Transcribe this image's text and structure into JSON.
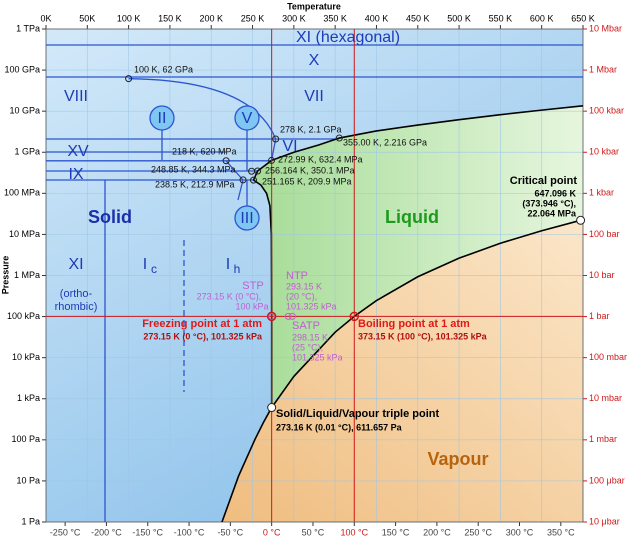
{
  "chart_data": {
    "type": "phase-diagram",
    "xlabel": "Temperature",
    "ylabel": "Pressure",
    "xlim": [
      0,
      650
    ],
    "xticks": [
      {
        "value": 0,
        "label": "0K"
      },
      {
        "value": 50,
        "label": "50K"
      },
      {
        "value": 100,
        "label": "100 K"
      },
      {
        "value": 150,
        "label": "150 K"
      },
      {
        "value": 200,
        "label": "200 K"
      },
      {
        "value": 250,
        "label": "250 K"
      },
      {
        "value": 300,
        "label": "300 K"
      },
      {
        "value": 350,
        "label": "350 K"
      },
      {
        "value": 400,
        "label": "400 K"
      },
      {
        "value": 450,
        "label": "450 K"
      },
      {
        "value": 500,
        "label": "500 K"
      },
      {
        "value": 550,
        "label": "550 K"
      },
      {
        "value": 600,
        "label": "600 K"
      },
      {
        "value": 650,
        "label": "650 K"
      }
    ],
    "x2lim": [
      -273.15,
      376.85
    ],
    "x2ticks": [
      {
        "value": -250,
        "label": "-250 °C"
      },
      {
        "value": -200,
        "label": "-200 °C"
      },
      {
        "value": -150,
        "label": "-150 °C"
      },
      {
        "value": -100,
        "label": "-100 °C"
      },
      {
        "value": -50,
        "label": "-50 °C"
      },
      {
        "value": 0,
        "label": "0 °C"
      },
      {
        "value": 50,
        "label": "50 °C"
      },
      {
        "value": 100,
        "label": "100 °C"
      },
      {
        "value": 150,
        "label": "150 °C"
      },
      {
        "value": 200,
        "label": "200 °C"
      },
      {
        "value": 250,
        "label": "250 °C"
      },
      {
        "value": 300,
        "label": "300 °C"
      },
      {
        "value": 350,
        "label": "350 °C"
      }
    ],
    "ylim": [
      1,
      1000000000000
    ],
    "yscale": "log",
    "yticks": [
      {
        "value": 1,
        "label": "1 Pa"
      },
      {
        "value": 10,
        "label": "10 Pa"
      },
      {
        "value": 100,
        "label": "100 Pa"
      },
      {
        "value": 1000,
        "label": "1 kPa"
      },
      {
        "value": 10000,
        "label": "10 kPa"
      },
      {
        "value": 100000,
        "label": "100 kPa"
      },
      {
        "value": 1000000,
        "label": "1 MPa"
      },
      {
        "value": 10000000,
        "label": "10 MPa"
      },
      {
        "value": 100000000,
        "label": "100 MPa"
      },
      {
        "value": 1000000000,
        "label": "1 GPa"
      },
      {
        "value": 10000000000,
        "label": "10 GPa"
      },
      {
        "value": 100000000000,
        "label": "100 GPa"
      },
      {
        "value": 1000000000000,
        "label": "1 TPa"
      }
    ],
    "y2lim": [
      1e-05,
      10000000
    ],
    "y2ticks": [
      {
        "value": 1e-05,
        "label": "10 μbar"
      },
      {
        "value": 0.0001,
        "label": "100 μbar"
      },
      {
        "value": 0.001,
        "label": "1 mbar"
      },
      {
        "value": 0.01,
        "label": "10 mbar"
      },
      {
        "value": 0.1,
        "label": "100 mbar"
      },
      {
        "value": 1,
        "label": "1 bar"
      },
      {
        "value": 10,
        "label": "10 bar"
      },
      {
        "value": 100,
        "label": "100 bar"
      },
      {
        "value": 1000,
        "label": "1 kbar"
      },
      {
        "value": 10000,
        "label": "10 kbar"
      },
      {
        "value": 100000,
        "label": "100 kbar"
      },
      {
        "value": 1000000,
        "label": "1 Mbar"
      },
      {
        "value": 10000000,
        "label": "10 Mbar"
      }
    ],
    "grid": true,
    "series": [
      {
        "color": "#000000",
        "x": [
          213,
          233,
          253,
          263,
          273.16
        ],
        "values": [
          1,
          13,
          103,
          260,
          611.657
        ]
      },
      {
        "color": "#000000",
        "x": [
          273.16,
          300,
          350,
          373.15,
          400,
          450,
          500,
          550,
          600,
          647.096
        ],
        "values": [
          611.657,
          3500,
          41700,
          101325,
          245000,
          932000,
          2640000,
          6100000,
          12300000,
          22064000
        ]
      },
      {
        "color": "#000000",
        "x": [
          273.16,
          273.15,
          272.8,
          271,
          267,
          260,
          251.165
        ],
        "values": [
          611.657,
          101325,
          10000000,
          50000000,
          100000000,
          160000000,
          209900000
        ]
      },
      {
        "color": "#000000",
        "x": [
          251.165,
          256.164,
          272.99,
          300,
          330,
          355,
          400,
          450,
          500,
          550,
          600,
          650
        ],
        "values": [
          209900000,
          350100000,
          632400000,
          1000000000,
          1500000000,
          2216000000,
          3300000000,
          4600000000,
          6200000000,
          8200000000,
          10600000000,
          13500000000
        ]
      }
    ],
    "points": [
      {
        "x": 100,
        "y": 62000000000,
        "label": [
          "100 K, 62 GPa"
        ]
      },
      {
        "x": 278,
        "y": 2100000000,
        "label": [
          "278 K, 2.1 GPa"
        ]
      },
      {
        "x": 355,
        "y": 2216000000,
        "label": [
          "355.00 K, 2.216 GPa"
        ]
      },
      {
        "x": 218,
        "y": 620000000,
        "label": [
          "218 K, 620 MPa"
        ]
      },
      {
        "x": 272.99,
        "y": 632400000,
        "label": [
          "272.99 K, 632.4 MPa"
        ]
      },
      {
        "x": 248.85,
        "y": 344300000,
        "label": [
          "248.85 K, 344.3 MPa"
        ]
      },
      {
        "x": 256.164,
        "y": 350100000,
        "label": [
          "256.164 K, 350.1 MPa"
        ]
      },
      {
        "x": 238.5,
        "y": 212900000,
        "label": [
          "238.5 K, 212.9 MPa"
        ]
      },
      {
        "x": 251.165,
        "y": 209900000,
        "label": [
          "251.165 K, 209.9 MPa"
        ]
      },
      {
        "x": 647.096,
        "y": 22064000,
        "label": [
          "Critical point",
          "647.096 K",
          "(373.946 °C),",
          "22.064 MPa"
        ]
      },
      {
        "x": 273.15,
        "y": 100000,
        "label": [
          "STP",
          "273.15 K (0 °C),",
          "100 kPa"
        ]
      },
      {
        "x": 293.15,
        "y": 101325,
        "label": [
          "NTP",
          "293.15 K",
          "(20 °C),",
          "101.325 kPa"
        ]
      },
      {
        "x": 298.15,
        "y": 101325,
        "label": [
          "SATP",
          "298.15 K",
          "(25 °C),",
          "101.325 kPa"
        ]
      },
      {
        "x": 273.15,
        "y": 101325,
        "label": [
          "Freezing point at 1 atm",
          "273.15 K (0 °C), 101.325 kPa"
        ]
      },
      {
        "x": 373.15,
        "y": 101325,
        "label": [
          "Boiling point at 1 atm",
          "373.15 K (100 °C), 101.325 kPa"
        ]
      },
      {
        "x": 273.16,
        "y": 611.657,
        "label": [
          "Solid/Liquid/Vapour triple point",
          "273.16 K (0.01 °C), 611.657 Pa"
        ]
      }
    ],
    "regions": [
      "XI (hexagonal)",
      "X",
      "VIII",
      "VII",
      "XV",
      "VI",
      "IX",
      "II",
      "V",
      "III",
      "Solid",
      "Liquid",
      "Vapour",
      "XI",
      "(ortho-",
      "rhombic)",
      "I",
      "c",
      "I",
      "h"
    ]
  }
}
